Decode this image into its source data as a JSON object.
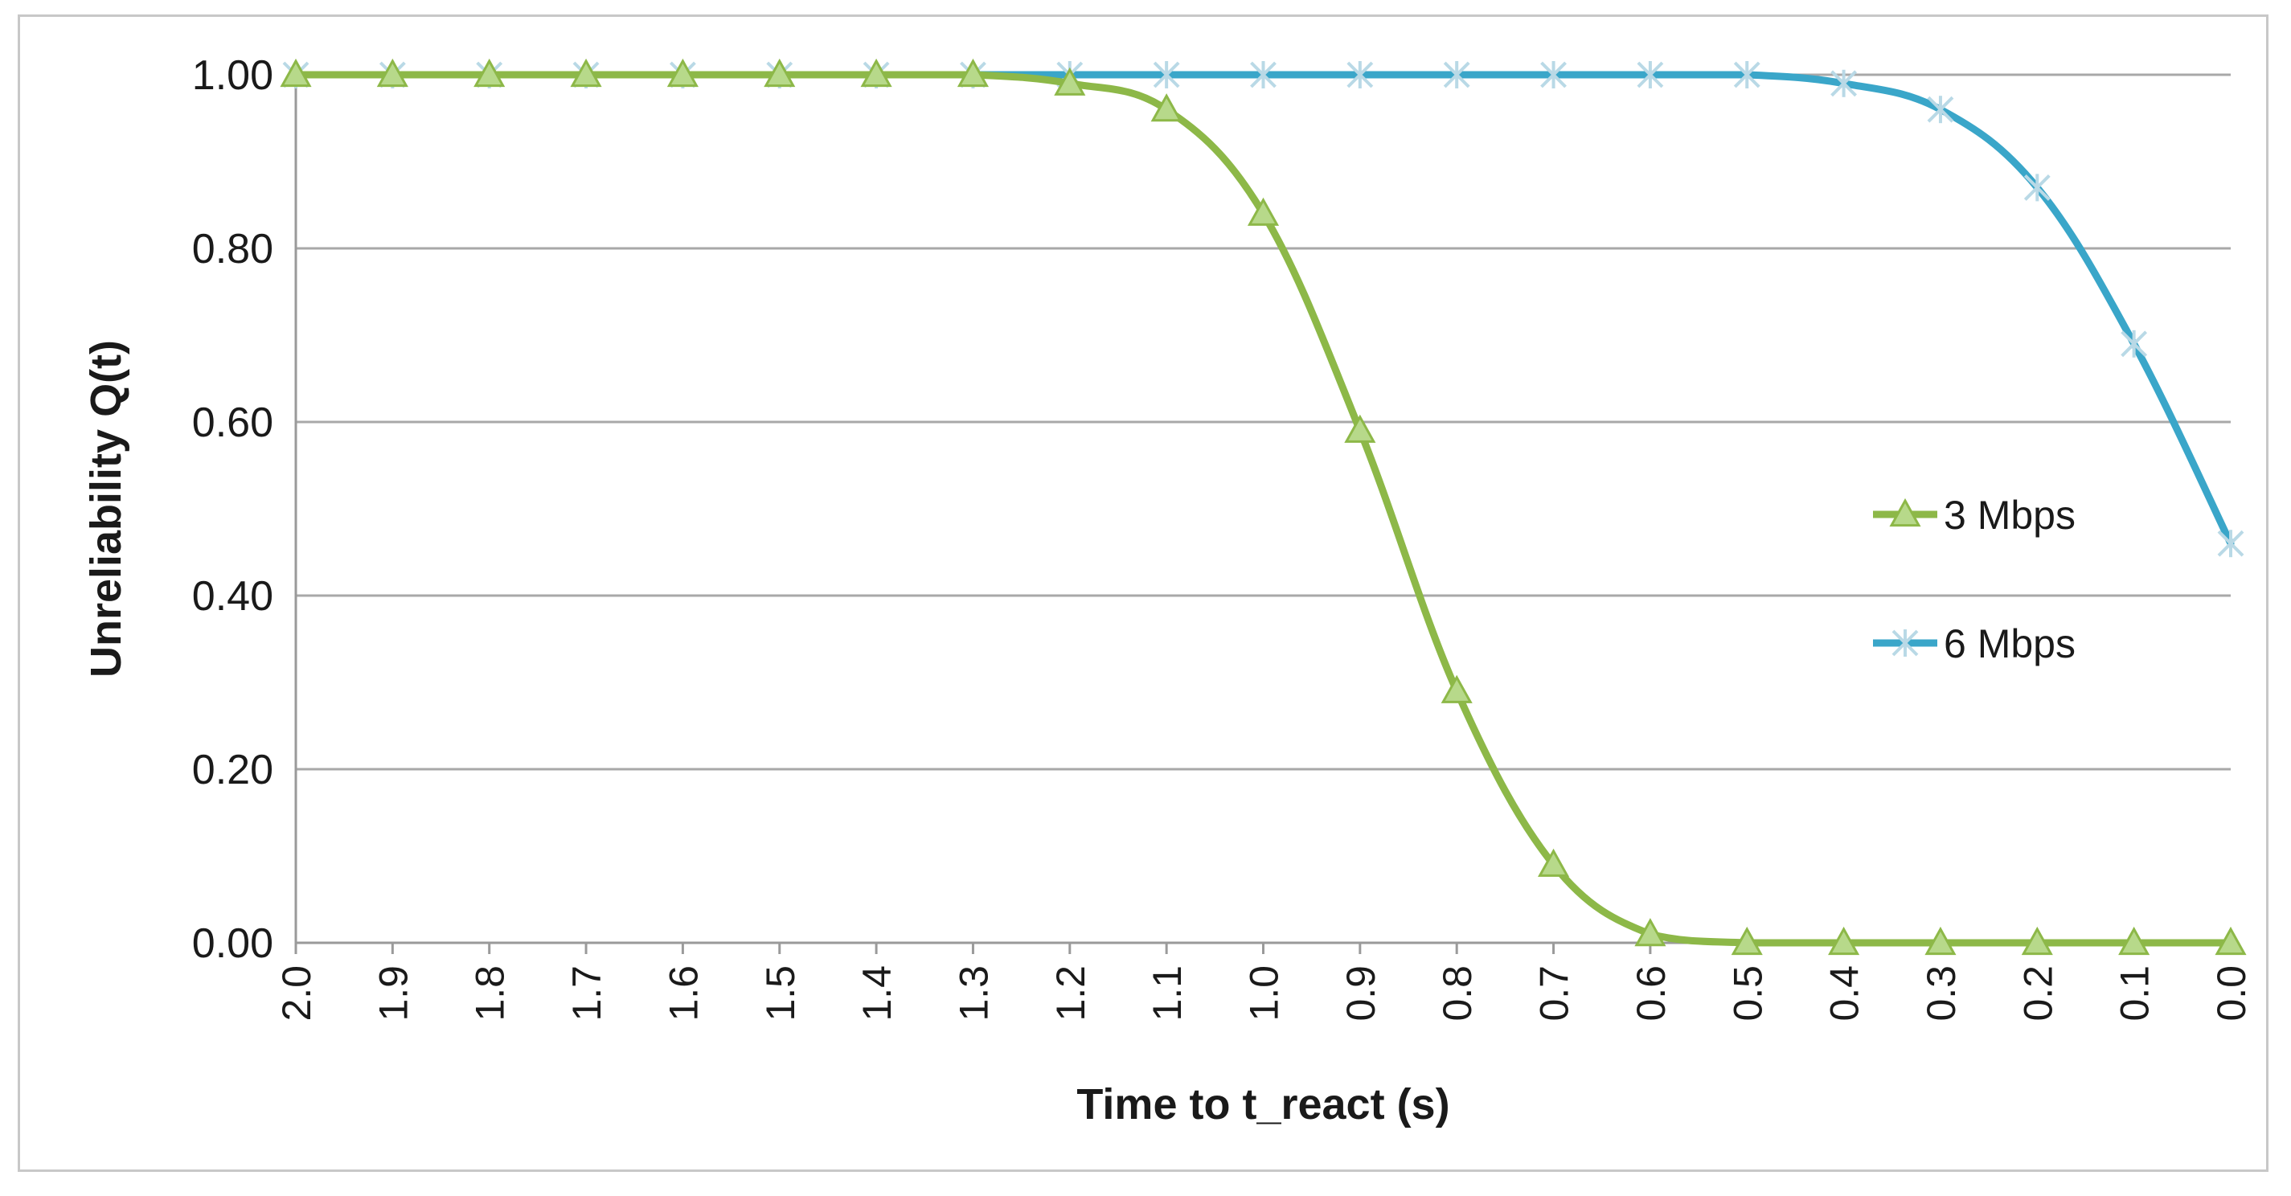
{
  "chart_data": {
    "type": "line",
    "title": "",
    "xlabel": "Time to t_react (s)",
    "ylabel": "Unreliability Q(t)",
    "x": [
      "2.0",
      "1.9",
      "1.8",
      "1.7",
      "1.6",
      "1.5",
      "1.4",
      "1.3",
      "1.2",
      "1.1",
      "1.0",
      "0.9",
      "0.8",
      "0.7",
      "0.6",
      "0.5",
      "0.4",
      "0.3",
      "0.2",
      "0.1",
      "0.0"
    ],
    "x_direction": "descending",
    "ylim": [
      0,
      1
    ],
    "yticks": [
      "0.00",
      "0.20",
      "0.40",
      "0.60",
      "0.80",
      "1.00"
    ],
    "grid": "horizontal",
    "legend_position": "right",
    "series": [
      {
        "name": "3 Mbps",
        "color": "#8db848",
        "marker": "triangle",
        "values": [
          1.0,
          1.0,
          1.0,
          1.0,
          1.0,
          1.0,
          1.0,
          1.0,
          0.99,
          0.96,
          0.84,
          0.59,
          0.29,
          0.09,
          0.01,
          0.0,
          0.0,
          0.0,
          0.0,
          0.0,
          0.0
        ]
      },
      {
        "name": "6 Mbps",
        "color": "#3aa6c9",
        "marker": "asterisk",
        "values": [
          1.0,
          1.0,
          1.0,
          1.0,
          1.0,
          1.0,
          1.0,
          1.0,
          1.0,
          1.0,
          1.0,
          1.0,
          1.0,
          1.0,
          1.0,
          1.0,
          0.99,
          0.96,
          0.87,
          0.69,
          0.46
        ]
      }
    ]
  }
}
